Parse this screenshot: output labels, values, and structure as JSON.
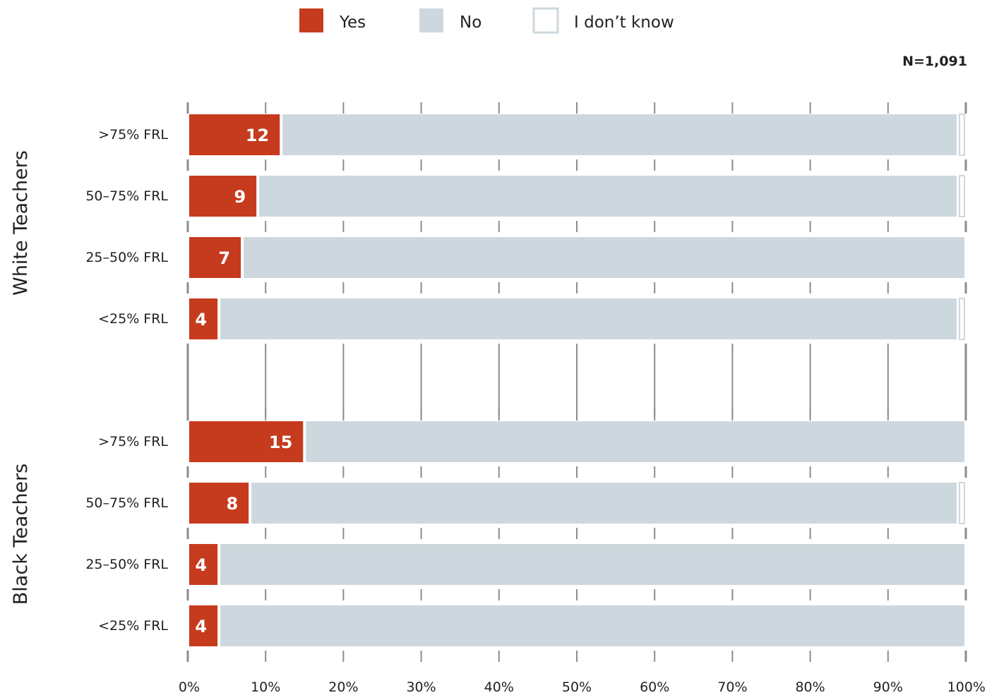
{
  "chart_data": {
    "type": "bar",
    "orientation": "horizontal",
    "stacked": true,
    "percent_stacked": true,
    "note": "N=1,091",
    "legend": [
      {
        "label": "Yes",
        "color": "#c63a1e"
      },
      {
        "label": "No",
        "color": "#cdd8de"
      },
      {
        "label": "I don’t know",
        "color": "#ffffff"
      }
    ],
    "legend_position": "top",
    "xlim": [
      0,
      100
    ],
    "xticks": [
      "0%",
      "10%",
      "20%",
      "30%",
      "40%",
      "50%",
      "60%",
      "70%",
      "80%",
      "90%",
      "100%"
    ],
    "groups": [
      {
        "name": "White Teachers",
        "categories": [
          ">75% FRL",
          "50–75% FRL",
          "25–50% FRL",
          "<25% FRL"
        ],
        "series": [
          {
            "name": "Yes",
            "values": [
              12,
              9,
              7,
              4
            ]
          },
          {
            "name": "No",
            "values": [
              87,
              90,
              93,
              95
            ]
          },
          {
            "name": "I don’t know",
            "values": [
              1,
              1,
              0,
              1
            ]
          }
        ],
        "labels": [
          "12",
          "9",
          "7",
          "4"
        ]
      },
      {
        "name": "Black Teachers",
        "categories": [
          ">75% FRL",
          "50–75% FRL",
          "25–50% FRL",
          "<25% FRL"
        ],
        "series": [
          {
            "name": "Yes",
            "values": [
              15,
              8,
              4,
              4
            ]
          },
          {
            "name": "No",
            "values": [
              85,
              91,
              96,
              96
            ]
          },
          {
            "name": "I don’t know",
            "values": [
              0,
              1,
              0,
              0
            ]
          }
        ],
        "labels": [
          "15",
          "8",
          "4",
          "4"
        ]
      }
    ],
    "grid": true
  }
}
